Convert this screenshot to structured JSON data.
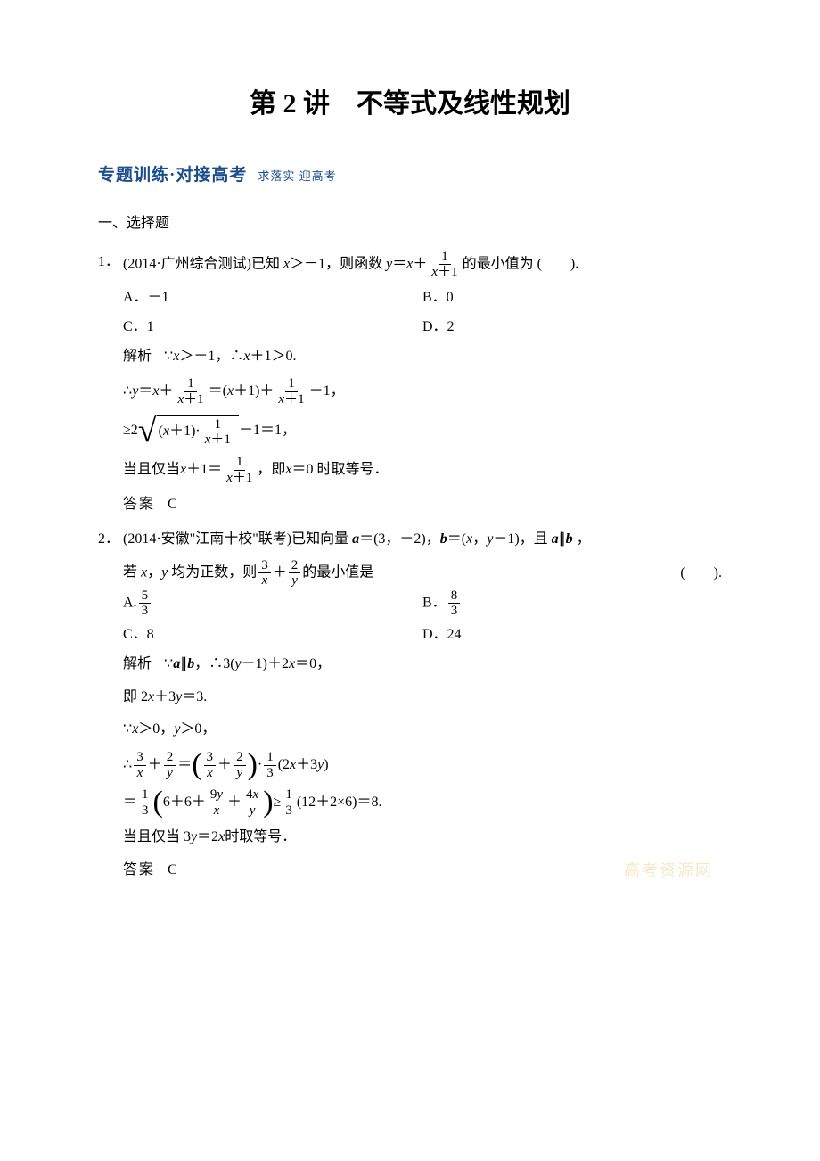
{
  "title": "第 2 讲　不等式及线性规划",
  "section_header": {
    "main": "专题训练·对接高考",
    "sub": "求落实  迎高考"
  },
  "sub_heading": "一、选择题",
  "q1": {
    "num": "1．",
    "source": "(2014·广州综合测试)",
    "stem_pre": "已知 ",
    "stem_mid": "＞－1，则函数 ",
    "stem_post": "的最小值为",
    "paren": "(　　).",
    "optA": "A．－1",
    "optB": "B．0",
    "optC": "C．1",
    "optD": "D．2",
    "sol_label": "解析",
    "sol1_a": "∵",
    "sol1_b": "＞－1，∴",
    "sol1_c": "＋1＞0.",
    "sol2_a": "∴",
    "sol2_b": "＝",
    "sol2_c": "＋",
    "sol2_d": "＝(",
    "sol2_e": "＋1)＋",
    "sol2_f": "－1，",
    "sol3_a": "≥2",
    "sol3_b": "－1＝1，",
    "sol4_a": "当且仅当 ",
    "sol4_b": "＋1＝",
    "sol4_c": "，即 ",
    "sol4_d": "＝0 时取等号．",
    "answer_label": "答案",
    "answer": "C"
  },
  "q2": {
    "num": "2．",
    "source": "(2014·安徽\"江南十校\"联考)",
    "stem_a": "已知向量 ",
    "stem_b": "＝(3，－2)，",
    "stem_c": "＝(",
    "stem_d": "，",
    "stem_e": "－1)，且 ",
    "stem_f": "∥",
    "stem_g": " ，",
    "stem2_a": "若 ",
    "stem2_b": "，",
    "stem2_c": " 均为正数，则",
    "stem2_d": "＋",
    "stem2_e": "的最小值是",
    "paren": "(　　).",
    "optA_pre": "A.",
    "optB_pre": "B．",
    "optC": "C．8",
    "optD": "D．24",
    "sol_label": "解析",
    "sol1_a": "∵",
    "sol1_b": "∥",
    "sol1_c": "，∴3(",
    "sol1_d": "－1)＋2",
    "sol1_e": "＝0，",
    "sol2_a": "即 2",
    "sol2_b": "＋3",
    "sol2_c": "＝3.",
    "sol3_a": "∵",
    "sol3_b": "＞0，",
    "sol3_c": "＞0，",
    "sol4_a": "∴",
    "sol4_b": "＋",
    "sol4_c": "＝",
    "sol4_d": "＋",
    "sol4_e": "·",
    "sol4_f": "(2",
    "sol4_g": "＋3",
    "sol4_h": ")",
    "sol5_a": "＝",
    "sol5_b": "6＋6＋",
    "sol5_c": "＋",
    "sol5_d": "≥",
    "sol5_e": "(12＋2×6)＝8.",
    "sol6": "当且仅当 3",
    "sol6_b": "＝2",
    "sol6_c": " 时取等号．",
    "answer_label": "答案",
    "answer": "C"
  },
  "watermark": "高考资源网",
  "colors": {
    "text": "#000000",
    "header": "#1a4d8a",
    "header_border": "#3b6aa0",
    "watermark": "#f6e8c8",
    "background": "#ffffff"
  }
}
